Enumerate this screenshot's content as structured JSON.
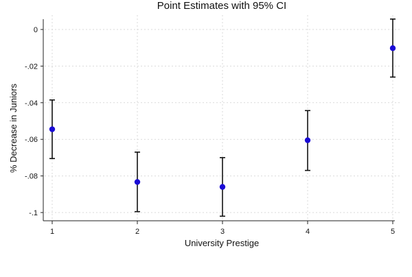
{
  "chart_data": {
    "type": "scatter",
    "title": "Point Estimates with 95% CI",
    "xlabel": "University Prestige",
    "ylabel": "% Decrease in Juniors",
    "x": [
      1,
      2,
      3,
      4,
      5
    ],
    "x_ticks": [
      "1",
      "2",
      "3",
      "4",
      "5"
    ],
    "y_ticks": [
      "0",
      "-.02",
      "-.04",
      "-.06",
      "-.08",
      "-.1"
    ],
    "y_tick_values": [
      0,
      -0.02,
      -0.04,
      -0.06,
      -0.08,
      -0.1
    ],
    "xlim": [
      1,
      5
    ],
    "ylim": [
      -0.103,
      0.006
    ],
    "grid": true,
    "series": [
      {
        "point_estimates": [
          -0.0545,
          -0.0833,
          -0.086,
          -0.0605,
          -0.0102
        ],
        "ci_lower": [
          -0.0705,
          -0.0995,
          -0.102,
          -0.077,
          -0.026
        ],
        "ci_upper": [
          -0.0385,
          -0.067,
          -0.07,
          -0.0443,
          0.0057
        ]
      }
    ],
    "colors": {
      "point": "#1a0ad6",
      "error_bar": "#111111",
      "grid": "#d9d9d9"
    }
  }
}
